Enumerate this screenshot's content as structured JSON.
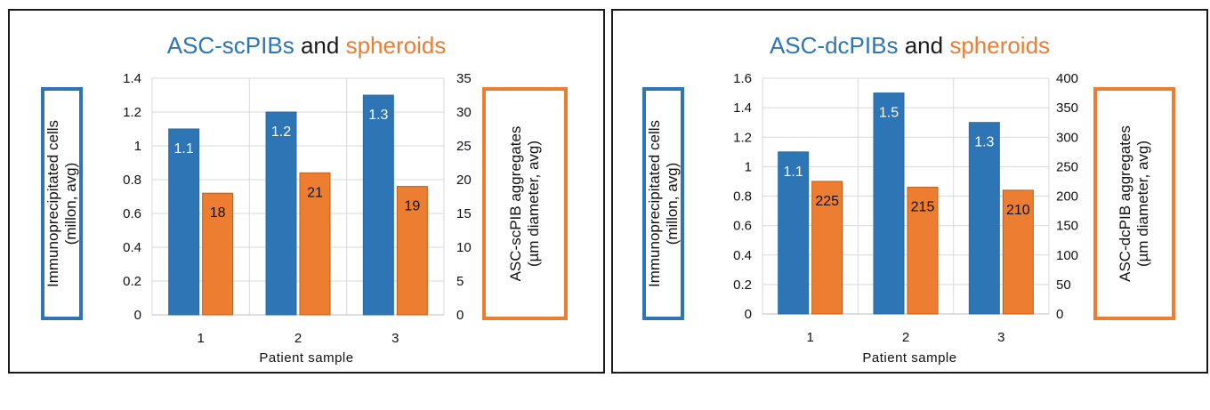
{
  "chart_data": [
    {
      "type": "bar",
      "title_parts": [
        "ASC-scPIBs",
        "and",
        "spheroids"
      ],
      "categories": [
        "1",
        "2",
        "3"
      ],
      "xlabel": "Patient sample",
      "ylabel_left": [
        "Immunoprecipitated cells",
        "(millon, avg)"
      ],
      "ylabel_right": [
        "ASC-scPIB aggregates",
        "(µm diameter, avg)"
      ],
      "ylim_left": [
        0,
        1.4
      ],
      "yticks_left": [
        "0",
        "0.2",
        "0.4",
        "0.6",
        "0.8",
        "1",
        "1.2",
        "1.4"
      ],
      "ylim_right": [
        0,
        35
      ],
      "yticks_right": [
        "0",
        "5",
        "10",
        "15",
        "20",
        "25",
        "30",
        "35"
      ],
      "series": [
        {
          "axis": "left",
          "color": "#2E75B6",
          "values": [
            1.1,
            1.2,
            1.3
          ],
          "labels": [
            "1.1",
            "1.2",
            "1.3"
          ]
        },
        {
          "axis": "right",
          "color": "#ED7D31",
          "values": [
            18,
            21,
            19
          ],
          "labels": [
            "18",
            "21",
            "19"
          ]
        }
      ],
      "grid": true
    },
    {
      "type": "bar",
      "title_parts": [
        "ASC-dcPIBs",
        "and",
        "spheroids"
      ],
      "categories": [
        "1",
        "2",
        "3"
      ],
      "xlabel": "Patient sample",
      "ylabel_left": [
        "Immunoprecipitated cells",
        "(millon, avg)"
      ],
      "ylabel_right": [
        "ASC-dcPIB aggregates",
        "(µm diameter, avg)"
      ],
      "ylim_left": [
        0,
        1.6
      ],
      "yticks_left": [
        "0",
        "0.2",
        "0.4",
        "0.6",
        "0.8",
        "1",
        "1.2",
        "1.4",
        "1.6"
      ],
      "ylim_right": [
        0,
        400
      ],
      "yticks_right": [
        "0",
        "50",
        "100",
        "150",
        "200",
        "250",
        "300",
        "350",
        "400"
      ],
      "series": [
        {
          "axis": "left",
          "color": "#2E75B6",
          "values": [
            1.1,
            1.5,
            1.3
          ],
          "labels": [
            "1.1",
            "1.5",
            "1.3"
          ]
        },
        {
          "axis": "right",
          "color": "#ED7D31",
          "values": [
            225,
            215,
            210
          ],
          "labels": [
            "225",
            "215",
            "210"
          ]
        }
      ],
      "grid": true
    }
  ]
}
